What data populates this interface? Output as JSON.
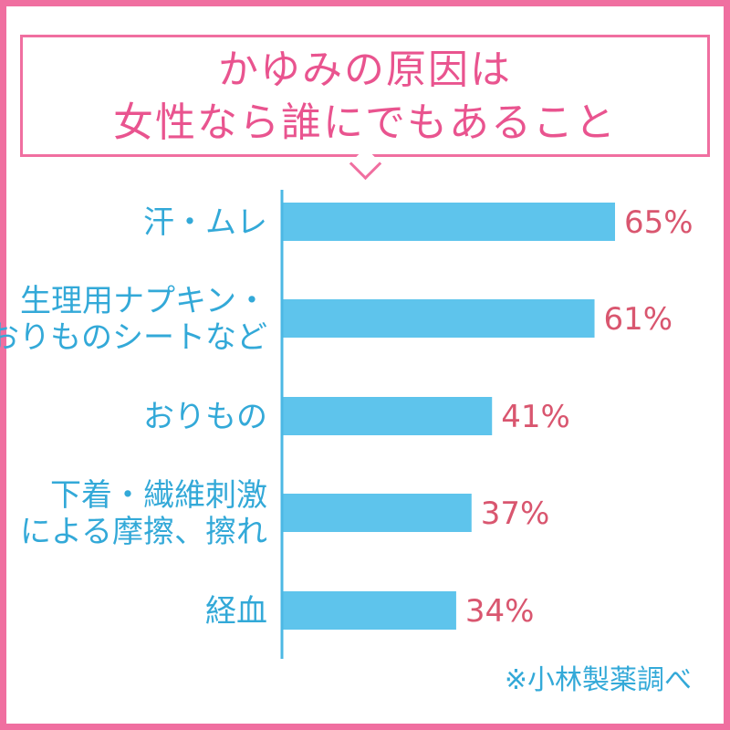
{
  "title": {
    "line1": "かゆみの原因は",
    "line2": "女性なら誰にでもあること"
  },
  "source": "※小林製薬調べ",
  "colors": {
    "frame": "#f06fa0",
    "title_text": "#e9548f",
    "bar": "#5ec4ec",
    "axis": "#4cb8e4",
    "category_text": "#33a9d8",
    "value_text": "#d9566f"
  },
  "chart_data": {
    "type": "bar",
    "orientation": "horizontal",
    "categories": [
      [
        "汗・ムレ"
      ],
      [
        "生理用ナプキン・",
        "おりものシートなど"
      ],
      [
        "おりもの"
      ],
      [
        "下着・繊維刺激",
        "による摩擦、擦れ"
      ],
      [
        "経血"
      ]
    ],
    "values": [
      65,
      61,
      41,
      37,
      34
    ],
    "value_labels": [
      "65%",
      "61%",
      "41%",
      "37%",
      "34%"
    ],
    "unit": "%",
    "xlim": [
      0,
      100
    ],
    "grid": false,
    "legend": "none"
  }
}
